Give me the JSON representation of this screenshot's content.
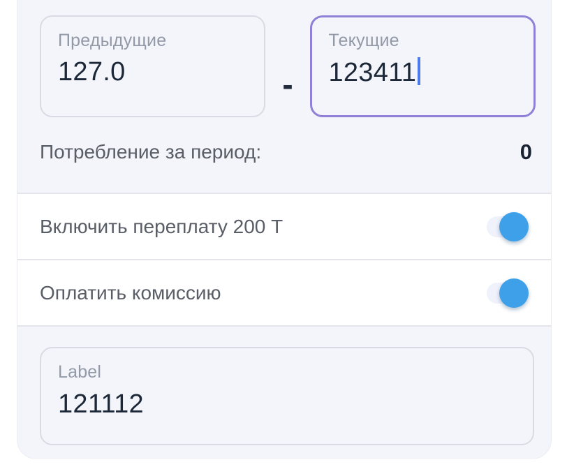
{
  "card": {
    "meter_inputs": {
      "previous": {
        "label": "Предыдущие",
        "value": "127.0"
      },
      "separator": "-",
      "current": {
        "label": "Текущие",
        "value": "123411",
        "focused": true
      }
    },
    "consumption": {
      "label": "Потребление за период:",
      "value": "0"
    },
    "toggles": [
      {
        "label": "Включить переплату 200 Т",
        "state": "on"
      },
      {
        "label": "Оплатить комиссию",
        "state": "on"
      }
    ],
    "amount_field": {
      "label": "Label",
      "value": "121112"
    },
    "colors": {
      "accent_purple": "#9080d8",
      "toggle_blue": "#3ea0e9",
      "cursor_blue": "#4d7bea",
      "value_navy": "#1c2738",
      "label_gray": "#9299a7",
      "row_text_gray": "#595d66",
      "section_bg": "#f3f5fa"
    }
  }
}
